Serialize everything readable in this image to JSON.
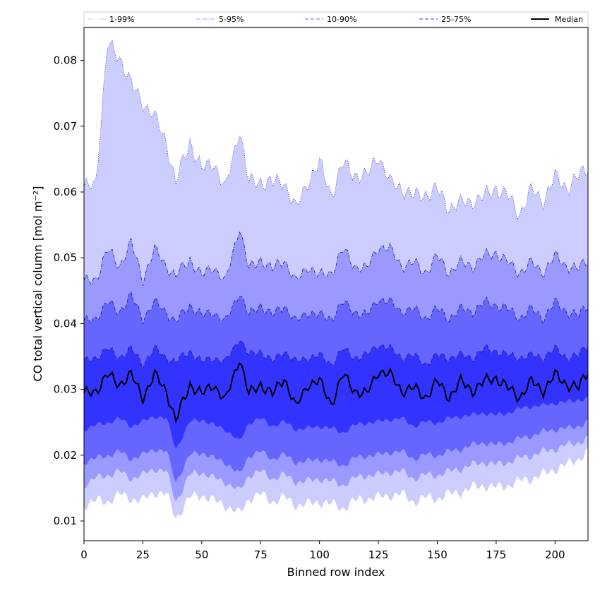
{
  "chart_data": {
    "type": "area",
    "xlabel": "Binned row index",
    "ylabel": "CO total vertical column [mol m⁻²]",
    "xlim": [
      0,
      214
    ],
    "ylim": [
      0.007,
      0.085
    ],
    "xticks": [
      0,
      25,
      50,
      75,
      100,
      125,
      150,
      175,
      200
    ],
    "yticks": [
      0.01,
      0.02,
      0.03,
      0.04,
      0.05,
      0.06,
      0.07,
      0.08
    ],
    "xtick_labels": [
      "0",
      "25",
      "50",
      "75",
      "100",
      "125",
      "150",
      "175",
      "200"
    ],
    "ytick_labels": [
      "0.01",
      "0.02",
      "0.03",
      "0.04",
      "0.05",
      "0.06",
      "0.07",
      "0.08"
    ],
    "grid": false,
    "legend_position": "top",
    "x_key": [
      0,
      5,
      10,
      15,
      20,
      25,
      30,
      35,
      39,
      45,
      50,
      55,
      60,
      66,
      70,
      75,
      80,
      85,
      90,
      95,
      100,
      105,
      110,
      115,
      120,
      125,
      130,
      135,
      140,
      145,
      150,
      155,
      160,
      165,
      170,
      175,
      180,
      185,
      190,
      195,
      200,
      205,
      210,
      214
    ],
    "series": [
      {
        "name": "1-99%",
        "style": "dotted",
        "color": "#ccccff",
        "lower": [
          0.0125,
          0.013,
          0.013,
          0.014,
          0.0135,
          0.013,
          0.0145,
          0.014,
          0.0105,
          0.0135,
          0.014,
          0.013,
          0.0125,
          0.011,
          0.0135,
          0.014,
          0.013,
          0.0135,
          0.0125,
          0.0125,
          0.013,
          0.0125,
          0.012,
          0.013,
          0.0135,
          0.0135,
          0.014,
          0.014,
          0.013,
          0.0135,
          0.0135,
          0.014,
          0.0145,
          0.015,
          0.0155,
          0.015,
          0.0155,
          0.016,
          0.0165,
          0.017,
          0.018,
          0.0185,
          0.0195,
          0.0205
        ],
        "upper": [
          0.06,
          0.062,
          0.082,
          0.081,
          0.076,
          0.074,
          0.071,
          0.068,
          0.061,
          0.068,
          0.063,
          0.065,
          0.06,
          0.07,
          0.061,
          0.062,
          0.061,
          0.062,
          0.057,
          0.062,
          0.064,
          0.06,
          0.064,
          0.063,
          0.062,
          0.066,
          0.061,
          0.061,
          0.059,
          0.06,
          0.06,
          0.058,
          0.058,
          0.059,
          0.059,
          0.061,
          0.059,
          0.057,
          0.06,
          0.059,
          0.062,
          0.061,
          0.062,
          0.064
        ]
      },
      {
        "name": "5-95%",
        "style": "dashdot",
        "color": "#9999ff",
        "lower": [
          0.0155,
          0.0165,
          0.017,
          0.0175,
          0.0165,
          0.017,
          0.018,
          0.0175,
          0.013,
          0.017,
          0.0175,
          0.0165,
          0.016,
          0.0145,
          0.017,
          0.0175,
          0.0165,
          0.017,
          0.016,
          0.016,
          0.0165,
          0.016,
          0.0155,
          0.0165,
          0.017,
          0.017,
          0.0175,
          0.0175,
          0.0165,
          0.017,
          0.017,
          0.0175,
          0.018,
          0.0185,
          0.019,
          0.0185,
          0.019,
          0.0195,
          0.02,
          0.0205,
          0.021,
          0.0215,
          0.022,
          0.0225
        ],
        "upper": [
          0.046,
          0.047,
          0.051,
          0.049,
          0.052,
          0.047,
          0.051,
          0.049,
          0.047,
          0.05,
          0.047,
          0.049,
          0.046,
          0.055,
          0.048,
          0.05,
          0.048,
          0.05,
          0.046,
          0.049,
          0.047,
          0.048,
          0.051,
          0.049,
          0.048,
          0.052,
          0.051,
          0.049,
          0.049,
          0.048,
          0.05,
          0.048,
          0.049,
          0.049,
          0.05,
          0.051,
          0.049,
          0.048,
          0.049,
          0.048,
          0.05,
          0.049,
          0.048,
          0.05
        ]
      },
      {
        "name": "10-90%",
        "style": "dashed",
        "color": "#6666ff",
        "lower": [
          0.019,
          0.0195,
          0.02,
          0.0205,
          0.0195,
          0.02,
          0.021,
          0.0205,
          0.016,
          0.02,
          0.0205,
          0.0195,
          0.019,
          0.017,
          0.02,
          0.0205,
          0.0195,
          0.02,
          0.019,
          0.019,
          0.0195,
          0.019,
          0.0185,
          0.0195,
          0.02,
          0.02,
          0.0205,
          0.0205,
          0.0195,
          0.02,
          0.02,
          0.0205,
          0.021,
          0.0215,
          0.022,
          0.0215,
          0.022,
          0.0225,
          0.023,
          0.0235,
          0.024,
          0.024,
          0.0245,
          0.025
        ],
        "upper": [
          0.04,
          0.041,
          0.043,
          0.042,
          0.044,
          0.041,
          0.043,
          0.042,
          0.04,
          0.043,
          0.041,
          0.042,
          0.04,
          0.045,
          0.041,
          0.043,
          0.041,
          0.043,
          0.04,
          0.042,
          0.041,
          0.041,
          0.043,
          0.042,
          0.041,
          0.044,
          0.043,
          0.042,
          0.042,
          0.041,
          0.042,
          0.041,
          0.042,
          0.042,
          0.043,
          0.043,
          0.042,
          0.041,
          0.042,
          0.041,
          0.043,
          0.042,
          0.041,
          0.043
        ]
      },
      {
        "name": "25-75%",
        "style": "dashed",
        "color": "#3333ff",
        "lower": [
          0.024,
          0.0245,
          0.025,
          0.0255,
          0.0245,
          0.025,
          0.026,
          0.0255,
          0.021,
          0.025,
          0.0255,
          0.0245,
          0.024,
          0.022,
          0.025,
          0.0255,
          0.0245,
          0.025,
          0.024,
          0.024,
          0.0245,
          0.024,
          0.0235,
          0.0245,
          0.025,
          0.025,
          0.0255,
          0.0255,
          0.0245,
          0.025,
          0.025,
          0.0255,
          0.026,
          0.026,
          0.0265,
          0.026,
          0.0265,
          0.027,
          0.0275,
          0.0275,
          0.028,
          0.028,
          0.0285,
          0.0285
        ],
        "upper": [
          0.034,
          0.035,
          0.036,
          0.035,
          0.036,
          0.034,
          0.036,
          0.035,
          0.034,
          0.036,
          0.034,
          0.035,
          0.034,
          0.038,
          0.035,
          0.036,
          0.034,
          0.036,
          0.034,
          0.035,
          0.035,
          0.034,
          0.036,
          0.035,
          0.035,
          0.037,
          0.036,
          0.035,
          0.035,
          0.034,
          0.035,
          0.035,
          0.035,
          0.035,
          0.036,
          0.036,
          0.035,
          0.035,
          0.035,
          0.035,
          0.036,
          0.035,
          0.035,
          0.037
        ]
      },
      {
        "name": "Median",
        "style": "solid",
        "color": "#000000",
        "values": [
          0.029,
          0.03,
          0.032,
          0.031,
          0.032,
          0.029,
          0.032,
          0.03,
          0.025,
          0.031,
          0.029,
          0.031,
          0.028,
          0.035,
          0.029,
          0.031,
          0.029,
          0.032,
          0.027,
          0.031,
          0.031,
          0.028,
          0.032,
          0.03,
          0.029,
          0.033,
          0.032,
          0.03,
          0.03,
          0.029,
          0.031,
          0.029,
          0.031,
          0.03,
          0.031,
          0.032,
          0.03,
          0.029,
          0.031,
          0.03,
          0.032,
          0.031,
          0.03,
          0.033
        ]
      }
    ]
  }
}
